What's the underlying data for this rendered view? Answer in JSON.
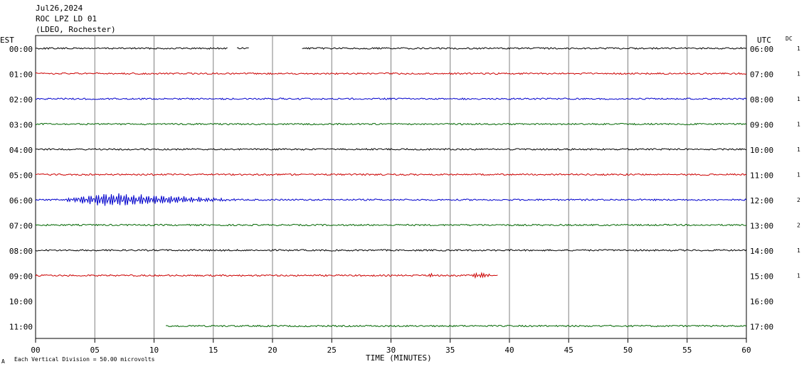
{
  "header": {
    "date": "Jul26,2024",
    "station": "ROC LPZ LD 01",
    "location": "(LDEO, Rochester)"
  },
  "left_axis_label": "EST",
  "right_axis_label": "UTC",
  "dc_label": "DC",
  "footer": {
    "scale_note": "Each Vertical Division =   50.00 microvolts",
    "corner_mark": "A"
  },
  "colors": {
    "black": "#000000",
    "red": "#cc0000",
    "blue": "#0000cc",
    "green": "#006600",
    "grid": "#808080"
  },
  "chart_data": {
    "type": "line",
    "title": "",
    "xlabel": "TIME (MINUTES)",
    "xlim": [
      0,
      60
    ],
    "xticks": [
      "00",
      "05",
      "10",
      "15",
      "20",
      "25",
      "30",
      "35",
      "40",
      "45",
      "50",
      "55",
      "60"
    ],
    "rows": [
      {
        "est": "00:00",
        "utc": "06:00",
        "dc": "1",
        "color": "black",
        "segments": [
          [
            0,
            16.2
          ],
          [
            17,
            18
          ],
          [
            22.5,
            60
          ]
        ],
        "events": []
      },
      {
        "est": "01:00",
        "utc": "07:00",
        "dc": "1",
        "color": "red",
        "segments": [
          [
            0,
            60
          ]
        ],
        "events": []
      },
      {
        "est": "02:00",
        "utc": "08:00",
        "dc": "1",
        "color": "blue",
        "segments": [
          [
            0,
            60
          ]
        ],
        "events": []
      },
      {
        "est": "03:00",
        "utc": "09:00",
        "dc": "1",
        "color": "green",
        "segments": [
          [
            0,
            60
          ]
        ],
        "events": []
      },
      {
        "est": "04:00",
        "utc": "10:00",
        "dc": "1",
        "color": "black",
        "segments": [
          [
            0,
            60
          ]
        ],
        "events": []
      },
      {
        "est": "05:00",
        "utc": "11:00",
        "dc": "1",
        "color": "red",
        "segments": [
          [
            0,
            60
          ]
        ],
        "events": []
      },
      {
        "est": "06:00",
        "utc": "12:00",
        "dc": "2",
        "color": "blue",
        "segments": [
          [
            0,
            60
          ]
        ],
        "events": [
          {
            "start": 2,
            "end": 17.5,
            "peak": 6,
            "amplitude": 1.0
          }
        ]
      },
      {
        "est": "07:00",
        "utc": "13:00",
        "dc": "2",
        "color": "green",
        "segments": [
          [
            0,
            60
          ]
        ],
        "events": []
      },
      {
        "est": "08:00",
        "utc": "14:00",
        "dc": "1",
        "color": "black",
        "segments": [
          [
            0,
            60
          ]
        ],
        "events": []
      },
      {
        "est": "09:00",
        "utc": "15:00",
        "dc": "1",
        "color": "red",
        "segments": [
          [
            0,
            39
          ]
        ],
        "events": [
          {
            "start": 33,
            "end": 33.6,
            "peak": 33.3,
            "amplitude": 0.35
          },
          {
            "start": 36.8,
            "end": 38.6,
            "peak": 37.5,
            "amplitude": 0.45
          }
        ]
      },
      {
        "est": "10:00",
        "utc": "16:00",
        "dc": "",
        "color": "blue",
        "segments": [],
        "events": []
      },
      {
        "est": "11:00",
        "utc": "17:00",
        "dc": "",
        "color": "green",
        "segments": [
          [
            11,
            60
          ]
        ],
        "events": []
      }
    ]
  }
}
